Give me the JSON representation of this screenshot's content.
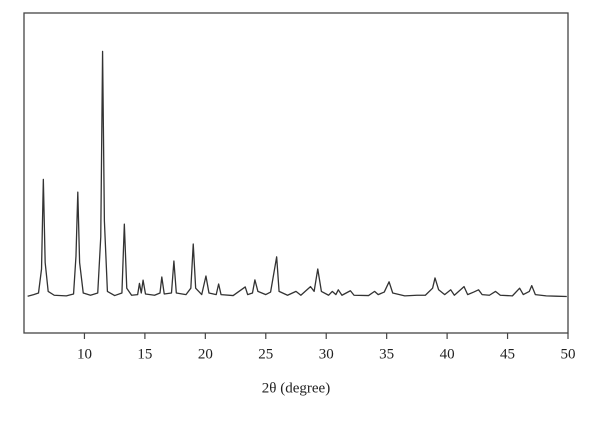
{
  "chart_data": {
    "type": "line",
    "xlabel": "2θ (degree)",
    "xlim": [
      5,
      50
    ],
    "ylim": [
      0,
      100
    ],
    "xticks": [
      10,
      15,
      20,
      25,
      30,
      35,
      40,
      45,
      50
    ],
    "series": [
      {
        "color": "#333333",
        "x": [
          5.3,
          5.8,
          6.2,
          6.45,
          6.6,
          6.75,
          7.0,
          7.5,
          8.5,
          9.1,
          9.3,
          9.45,
          9.6,
          9.9,
          10.5,
          11.1,
          11.35,
          11.5,
          11.65,
          11.9,
          12.5,
          13.1,
          13.3,
          13.5,
          13.9,
          14.4,
          14.55,
          14.7,
          14.85,
          15.05,
          15.8,
          16.25,
          16.4,
          16.6,
          17.2,
          17.4,
          17.6,
          18.4,
          18.8,
          19.0,
          19.2,
          19.7,
          20.05,
          20.3,
          20.9,
          21.1,
          21.3,
          22.3,
          23.3,
          23.5,
          23.9,
          24.1,
          24.35,
          25.0,
          25.4,
          25.9,
          26.1,
          26.8,
          27.5,
          27.9,
          28.7,
          29.0,
          29.3,
          29.6,
          30.2,
          30.5,
          30.8,
          31.0,
          31.3,
          32.0,
          32.3,
          33.5,
          34.0,
          34.3,
          34.8,
          35.2,
          35.5,
          36.5,
          37.5,
          38.2,
          38.8,
          39.0,
          39.3,
          39.8,
          40.3,
          40.6,
          41.4,
          41.7,
          42.2,
          42.6,
          42.9,
          43.5,
          44.0,
          44.4,
          45.4,
          46.0,
          46.3,
          46.8,
          47.0,
          47.3,
          48.2,
          49.0,
          49.9
        ],
        "values": [
          11.5,
          12,
          12.5,
          20,
          48,
          22,
          13,
          11.8,
          11.6,
          12.2,
          24,
          44,
          22,
          12.5,
          11.8,
          12.5,
          30,
          88,
          35,
          13,
          11.7,
          12.5,
          34,
          14,
          11.8,
          12,
          15.5,
          12.5,
          16.5,
          12.2,
          11.8,
          12.5,
          17.5,
          12.2,
          12.5,
          22.5,
          12.5,
          12,
          14,
          27.8,
          14,
          12,
          17.8,
          12.5,
          12,
          15.3,
          12,
          11.7,
          14.4,
          12,
          12.5,
          16.6,
          13,
          12,
          12.8,
          23.8,
          13,
          11.8,
          13,
          11.8,
          14.5,
          13,
          20,
          13,
          11.8,
          13,
          12,
          13.5,
          11.8,
          13.2,
          11.8,
          11.7,
          13,
          12,
          12.8,
          16,
          12.5,
          11.6,
          11.8,
          11.8,
          14,
          17.2,
          13.5,
          12,
          13.5,
          11.8,
          14.5,
          12,
          12.8,
          13.5,
          12,
          11.8,
          13,
          11.8,
          11.6,
          14,
          12,
          13,
          14.8,
          12,
          11.6,
          11.5,
          11.4
        ]
      }
    ]
  }
}
